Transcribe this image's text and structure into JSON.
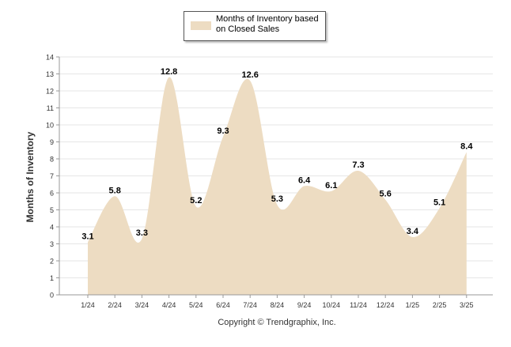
{
  "chart_data": {
    "type": "area",
    "categories": [
      "1/24",
      "2/24",
      "3/24",
      "4/24",
      "5/24",
      "6/24",
      "7/24",
      "8/24",
      "9/24",
      "10/24",
      "11/24",
      "12/24",
      "1/25",
      "2/25",
      "3/25"
    ],
    "series": [
      {
        "name": "Months of Inventory based on Closed Sales",
        "values": [
          3.1,
          5.8,
          3.3,
          12.8,
          5.2,
          9.3,
          12.6,
          5.3,
          6.4,
          6.1,
          7.3,
          5.6,
          3.4,
          5.1,
          8.4
        ]
      }
    ],
    "ylabel": "Months of Inventory",
    "ylim": [
      0,
      14
    ],
    "yticks": [
      0,
      1,
      2,
      3,
      4,
      5,
      6,
      7,
      8,
      9,
      10,
      11,
      12,
      13,
      14
    ],
    "grid": true,
    "legend": "top",
    "fill_color": "#eddcc2",
    "grid_color": "#e6e6e6"
  },
  "footer": {
    "copyright": "Copyright © Trendgraphix, Inc."
  },
  "legend": {
    "label_line1": "Months of Inventory based",
    "label_line2": "on Closed Sales"
  }
}
